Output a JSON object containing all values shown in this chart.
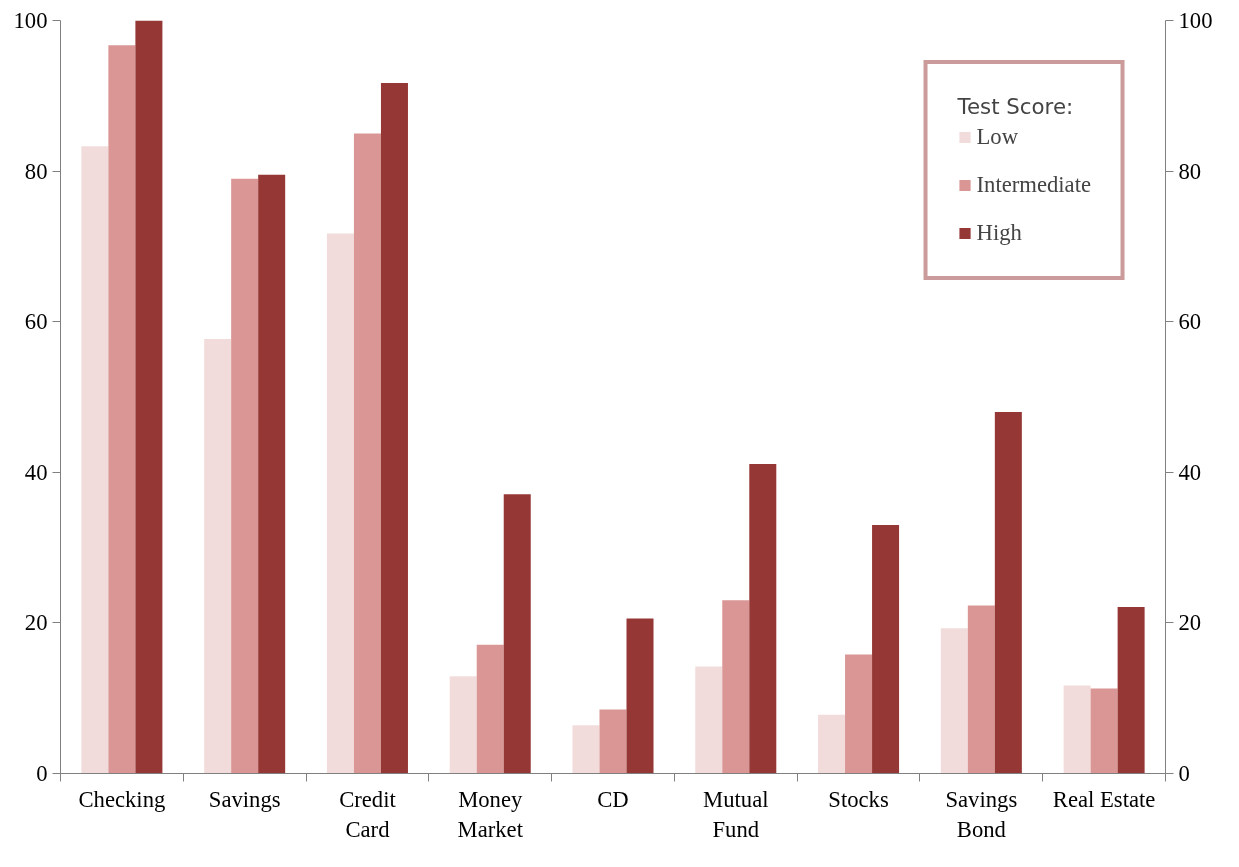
{
  "chart_data": {
    "type": "bar",
    "categories": [
      "Checking",
      "Savings",
      "Credit\nCard",
      "Money\nMarket",
      "CD",
      "Mutual\nFund",
      "Stocks",
      "Savings\nBond",
      "Real Estate"
    ],
    "series": [
      {
        "name": "Low",
        "color": "#f2dcdb",
        "values": [
          83.3,
          57.7,
          71.7,
          12.9,
          6.4,
          14.2,
          7.8,
          19.3,
          11.7
        ]
      },
      {
        "name": "Intermediate",
        "color": "#d99694",
        "values": [
          96.7,
          79.0,
          85.0,
          17.1,
          8.5,
          23.0,
          15.8,
          22.3,
          11.3
        ]
      },
      {
        "name": "High",
        "color": "#953735",
        "values": [
          100,
          79.5,
          91.7,
          37.1,
          20.6,
          41.1,
          33.0,
          48.0,
          22.1
        ]
      }
    ],
    "legend_title": "Test Score:",
    "legend": "top right",
    "grid": false,
    "ylim": [
      0,
      100
    ],
    "yticks": [
      0,
      20,
      40,
      60,
      80,
      100
    ],
    "y2lim": [
      0,
      100
    ],
    "y2ticks": [
      0,
      20,
      40,
      60,
      80,
      100
    ]
  }
}
